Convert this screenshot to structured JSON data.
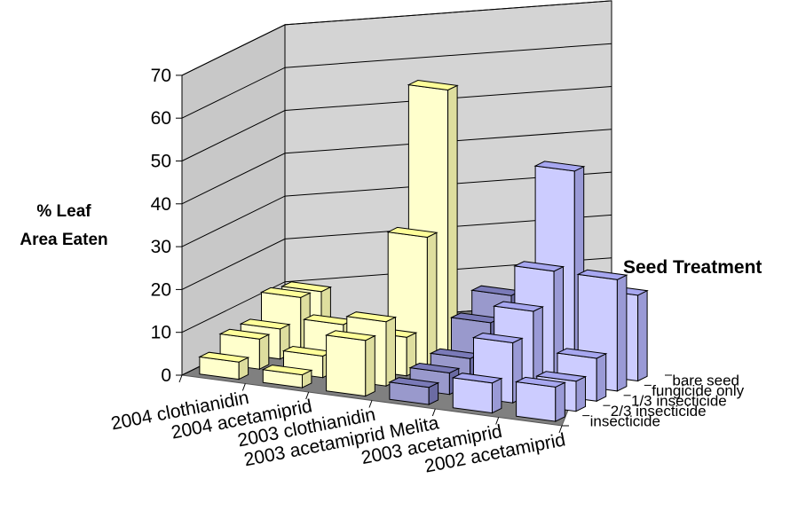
{
  "chart_data": {
    "type": "bar",
    "subtype": "3d-column",
    "ylabel_lines": [
      "% Leaf",
      "Area Eaten"
    ],
    "zlabel": "Seed Treatment",
    "ylim": [
      0,
      70
    ],
    "yticks": [
      "0",
      "10",
      "20",
      "30",
      "40",
      "50",
      "60",
      "70"
    ],
    "grid": true,
    "categories": [
      "2004 clothianidin",
      "2004 acetamiprid",
      "2003 clothianidin",
      "2003 acetamiprid Melita",
      "2003 acetamiprid",
      "2002 acetamiprid"
    ],
    "series": [
      {
        "name": "insecticide",
        "values": [
          4,
          3,
          13,
          4,
          7,
          8
        ]
      },
      {
        "name": "2/3 insecticide",
        "values": [
          7,
          5,
          15,
          5,
          14,
          7
        ]
      },
      {
        "name": "1/3 insecticide",
        "values": [
          7,
          10,
          9,
          6,
          19,
          10
        ]
      },
      {
        "name": "fungicide only",
        "values": [
          12,
          6,
          30,
          12,
          26,
          26
        ]
      },
      {
        "name": "bare seed",
        "values": [
          11,
          5,
          62,
          16,
          47,
          20
        ]
      }
    ],
    "colors": {
      "cream_face": "#ffffcc",
      "cream_top": "#ffff99",
      "cream_side": "#dede9e",
      "blue_face": "#ccccff",
      "blue_top": "#a7a7f0",
      "blue_side": "#9a9ad6",
      "dark_face": "#9999cc",
      "dark_top": "#7a7ab8",
      "dark_side": "#6b6ba3",
      "floor": "#808080",
      "left_wall": "#c8c8c8",
      "back_wall": "#d4d4d4"
    }
  }
}
